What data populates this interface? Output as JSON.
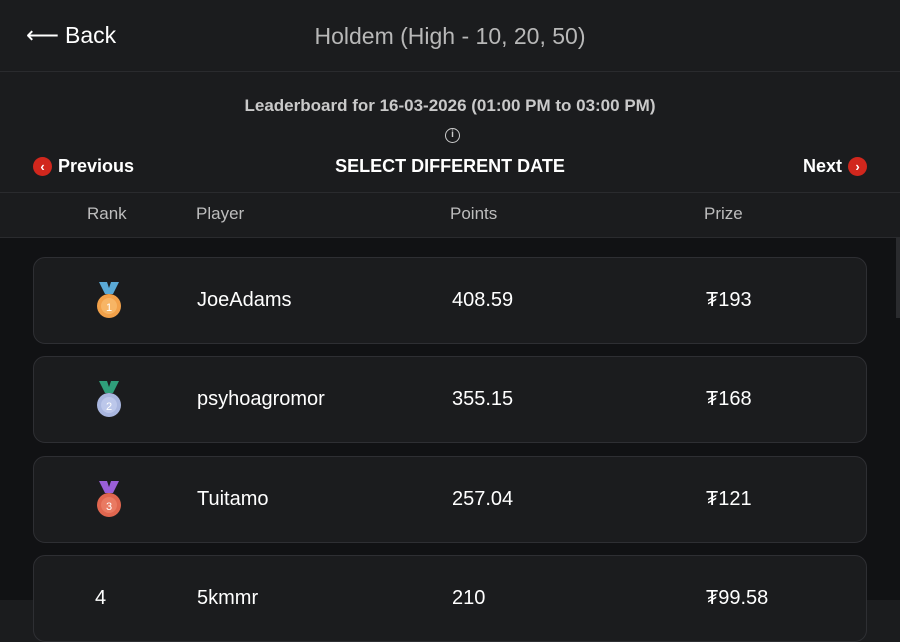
{
  "header": {
    "back_label": "Back",
    "title": "Holdem (High - 10, 20, 50)"
  },
  "leaderboard": {
    "subtitle": "Leaderboard for 16-03-2026 (01:00 PM to 03:00 PM)",
    "info_icon": "i",
    "previous_label": "Previous",
    "select_date_label": "SELECT DIFFERENT DATE",
    "next_label": "Next",
    "accent": "#d1271d"
  },
  "columns": {
    "rank": "Rank",
    "player": "Player",
    "points": "Points",
    "prize": "Prize"
  },
  "rows": [
    {
      "rank": "1",
      "medal": "gold",
      "player": "JoeAdams",
      "points": "408.59",
      "prize": "₮193"
    },
    {
      "rank": "2",
      "medal": "silver",
      "player": "psyhoagromor",
      "points": "355.15",
      "prize": "₮168"
    },
    {
      "rank": "3",
      "medal": "bronze",
      "player": "Tuitamo",
      "points": "257.04",
      "prize": "₮121"
    },
    {
      "rank": "4",
      "player": "5kmmr",
      "points": "210",
      "prize": "₮99.58"
    }
  ]
}
